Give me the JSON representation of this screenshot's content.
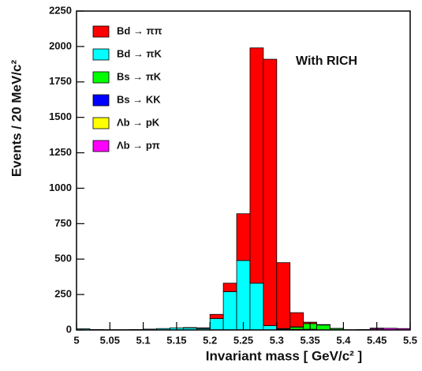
{
  "chart_data": {
    "type": "stacked-histogram",
    "annotation": "With RICH",
    "x_label": "Invariant mass  [ GeV/c² ]",
    "y_label": "Events  /  20 MeV/c²",
    "bins": [
      5.0,
      5.02,
      5.04,
      5.06,
      5.08,
      5.1,
      5.12,
      5.14,
      5.16,
      5.18,
      5.2,
      5.22,
      5.24,
      5.26,
      5.28,
      5.3,
      5.32,
      5.34,
      5.36,
      5.38,
      5.4,
      5.42,
      5.44,
      5.46,
      5.48,
      5.5
    ],
    "xlim": [
      5,
      5.5
    ],
    "xticks": [
      5,
      5.05,
      5.1,
      5.15,
      5.2,
      5.25,
      5.3,
      5.35,
      5.4,
      5.45,
      5.5
    ],
    "ylim": [
      0,
      2250
    ],
    "yticks": [
      0,
      250,
      500,
      750,
      1000,
      1250,
      1500,
      1750,
      2000,
      2250
    ],
    "series": [
      {
        "name": "Bd → ππ",
        "color": "#ff0000",
        "values": [
          0,
          0,
          0,
          0,
          0,
          0,
          0,
          0,
          2,
          5,
          30,
          60,
          330,
          1660,
          1880,
          465,
          100,
          10,
          3,
          1,
          0,
          0,
          0,
          0,
          0
        ]
      },
      {
        "name": "Bd → πK",
        "color": "#00ffff",
        "values": [
          8,
          3,
          2,
          2,
          3,
          6,
          10,
          15,
          15,
          10,
          80,
          270,
          490,
          330,
          30,
          5,
          2,
          0,
          0,
          0,
          0,
          0,
          0,
          0,
          0
        ]
      },
      {
        "name": "Bs → πK",
        "color": "#00ff00",
        "values": [
          0,
          0,
          0,
          0,
          0,
          0,
          0,
          0,
          0,
          0,
          0,
          0,
          0,
          0,
          0,
          0,
          15,
          40,
          35,
          10,
          0,
          0,
          0,
          0,
          0
        ]
      },
      {
        "name": "Bs → KK",
        "color": "#0000ff",
        "values": [
          0,
          0,
          0,
          0,
          0,
          0,
          0,
          0,
          0,
          0,
          0,
          0,
          0,
          0,
          0,
          5,
          5,
          5,
          0,
          0,
          0,
          0,
          0,
          0,
          0
        ]
      },
      {
        "name": "Λb → pK",
        "color": "#ffff00",
        "values": [
          0,
          0,
          0,
          0,
          0,
          0,
          0,
          0,
          0,
          0,
          0,
          0,
          0,
          0,
          0,
          0,
          0,
          0,
          0,
          0,
          2,
          3,
          3,
          0,
          0
        ]
      },
      {
        "name": "Λb → pπ",
        "color": "#ff00ff",
        "values": [
          0,
          0,
          0,
          0,
          0,
          0,
          0,
          0,
          0,
          0,
          0,
          0,
          0,
          0,
          0,
          0,
          0,
          0,
          0,
          0,
          0,
          0,
          10,
          12,
          10
        ]
      }
    ]
  }
}
